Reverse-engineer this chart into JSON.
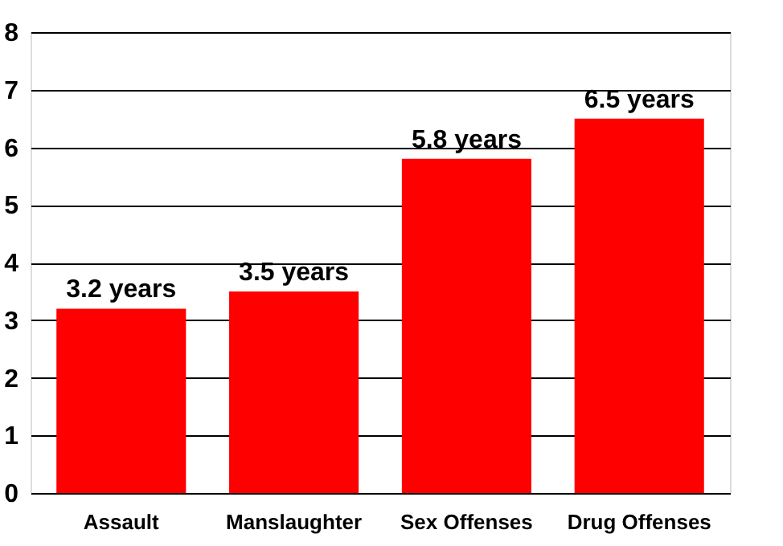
{
  "chart_data": {
    "type": "bar",
    "categories": [
      "Assault",
      "Manslaughter",
      "Sex Offenses",
      "Drug Offenses"
    ],
    "values": [
      3.2,
      3.5,
      5.8,
      6.5
    ],
    "value_labels": [
      "3.2 years",
      "3.5 years",
      "5.8 years",
      "6.5 years"
    ],
    "color": "#ff0000",
    "ylim": [
      0,
      8
    ],
    "yticks": [
      0,
      1,
      2,
      3,
      4,
      5,
      6,
      7,
      8
    ],
    "grid": "y"
  }
}
